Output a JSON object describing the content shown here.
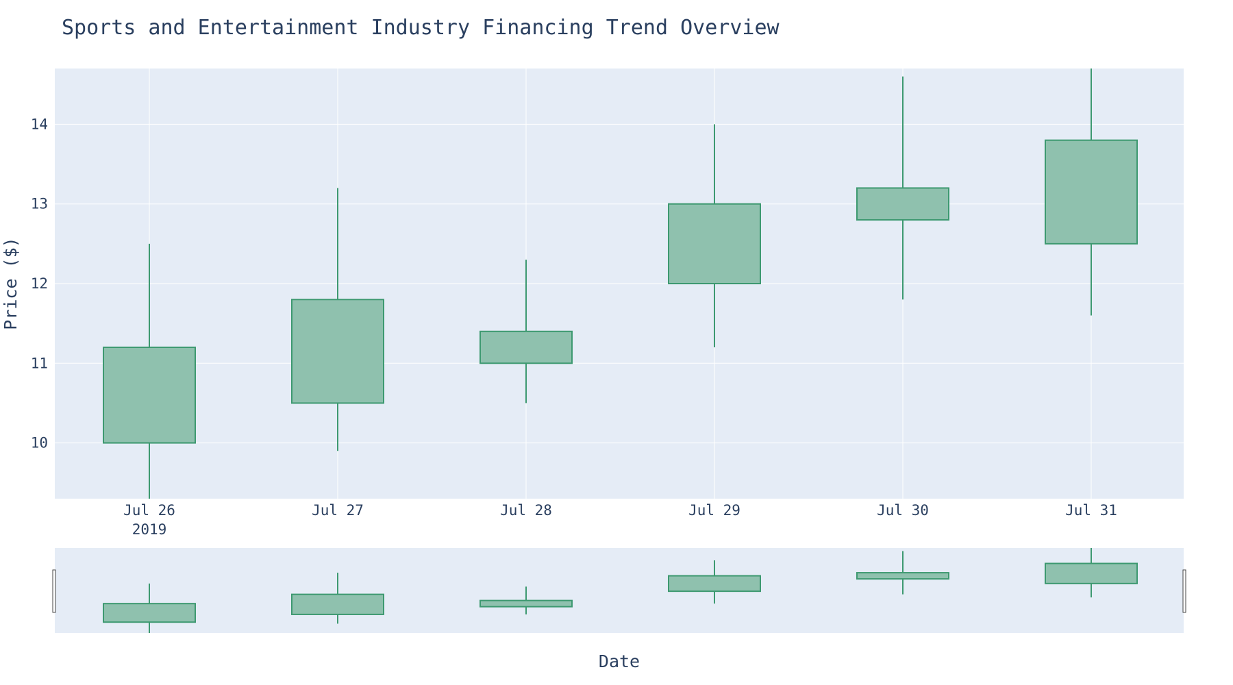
{
  "chart_data": {
    "type": "candlestick",
    "title": "Sports and Entertainment Industry Financing Trend Overview",
    "xlabel": "Date",
    "ylabel": "Price ($)",
    "x": [
      "2019-07-26",
      "2019-07-27",
      "2019-07-28",
      "2019-07-29",
      "2019-07-30",
      "2019-07-31"
    ],
    "x_tick_labels": [
      "Jul 26",
      "Jul 27",
      "Jul 28",
      "Jul 29",
      "Jul 30",
      "Jul 31"
    ],
    "x_year_label": "2019",
    "open": [
      10.0,
      10.5,
      11.0,
      12.0,
      12.8,
      12.5
    ],
    "high": [
      12.5,
      13.2,
      12.3,
      14.0,
      14.6,
      14.8
    ],
    "low": [
      9.3,
      9.9,
      10.5,
      11.2,
      11.8,
      11.6
    ],
    "close": [
      11.2,
      11.8,
      11.4,
      13.0,
      13.2,
      13.8
    ],
    "y_ticks": [
      10,
      11,
      12,
      13,
      14
    ],
    "ylim": [
      9.3,
      14.7
    ],
    "grid": true,
    "legend": "none",
    "rangeslider": true,
    "colors": {
      "increasing_line": "#3d9970",
      "increasing_fill": "#8fc1ae",
      "plot_bg": "#e5ecf6",
      "grid": "#ffffff",
      "text": "#2a3f5f"
    }
  }
}
